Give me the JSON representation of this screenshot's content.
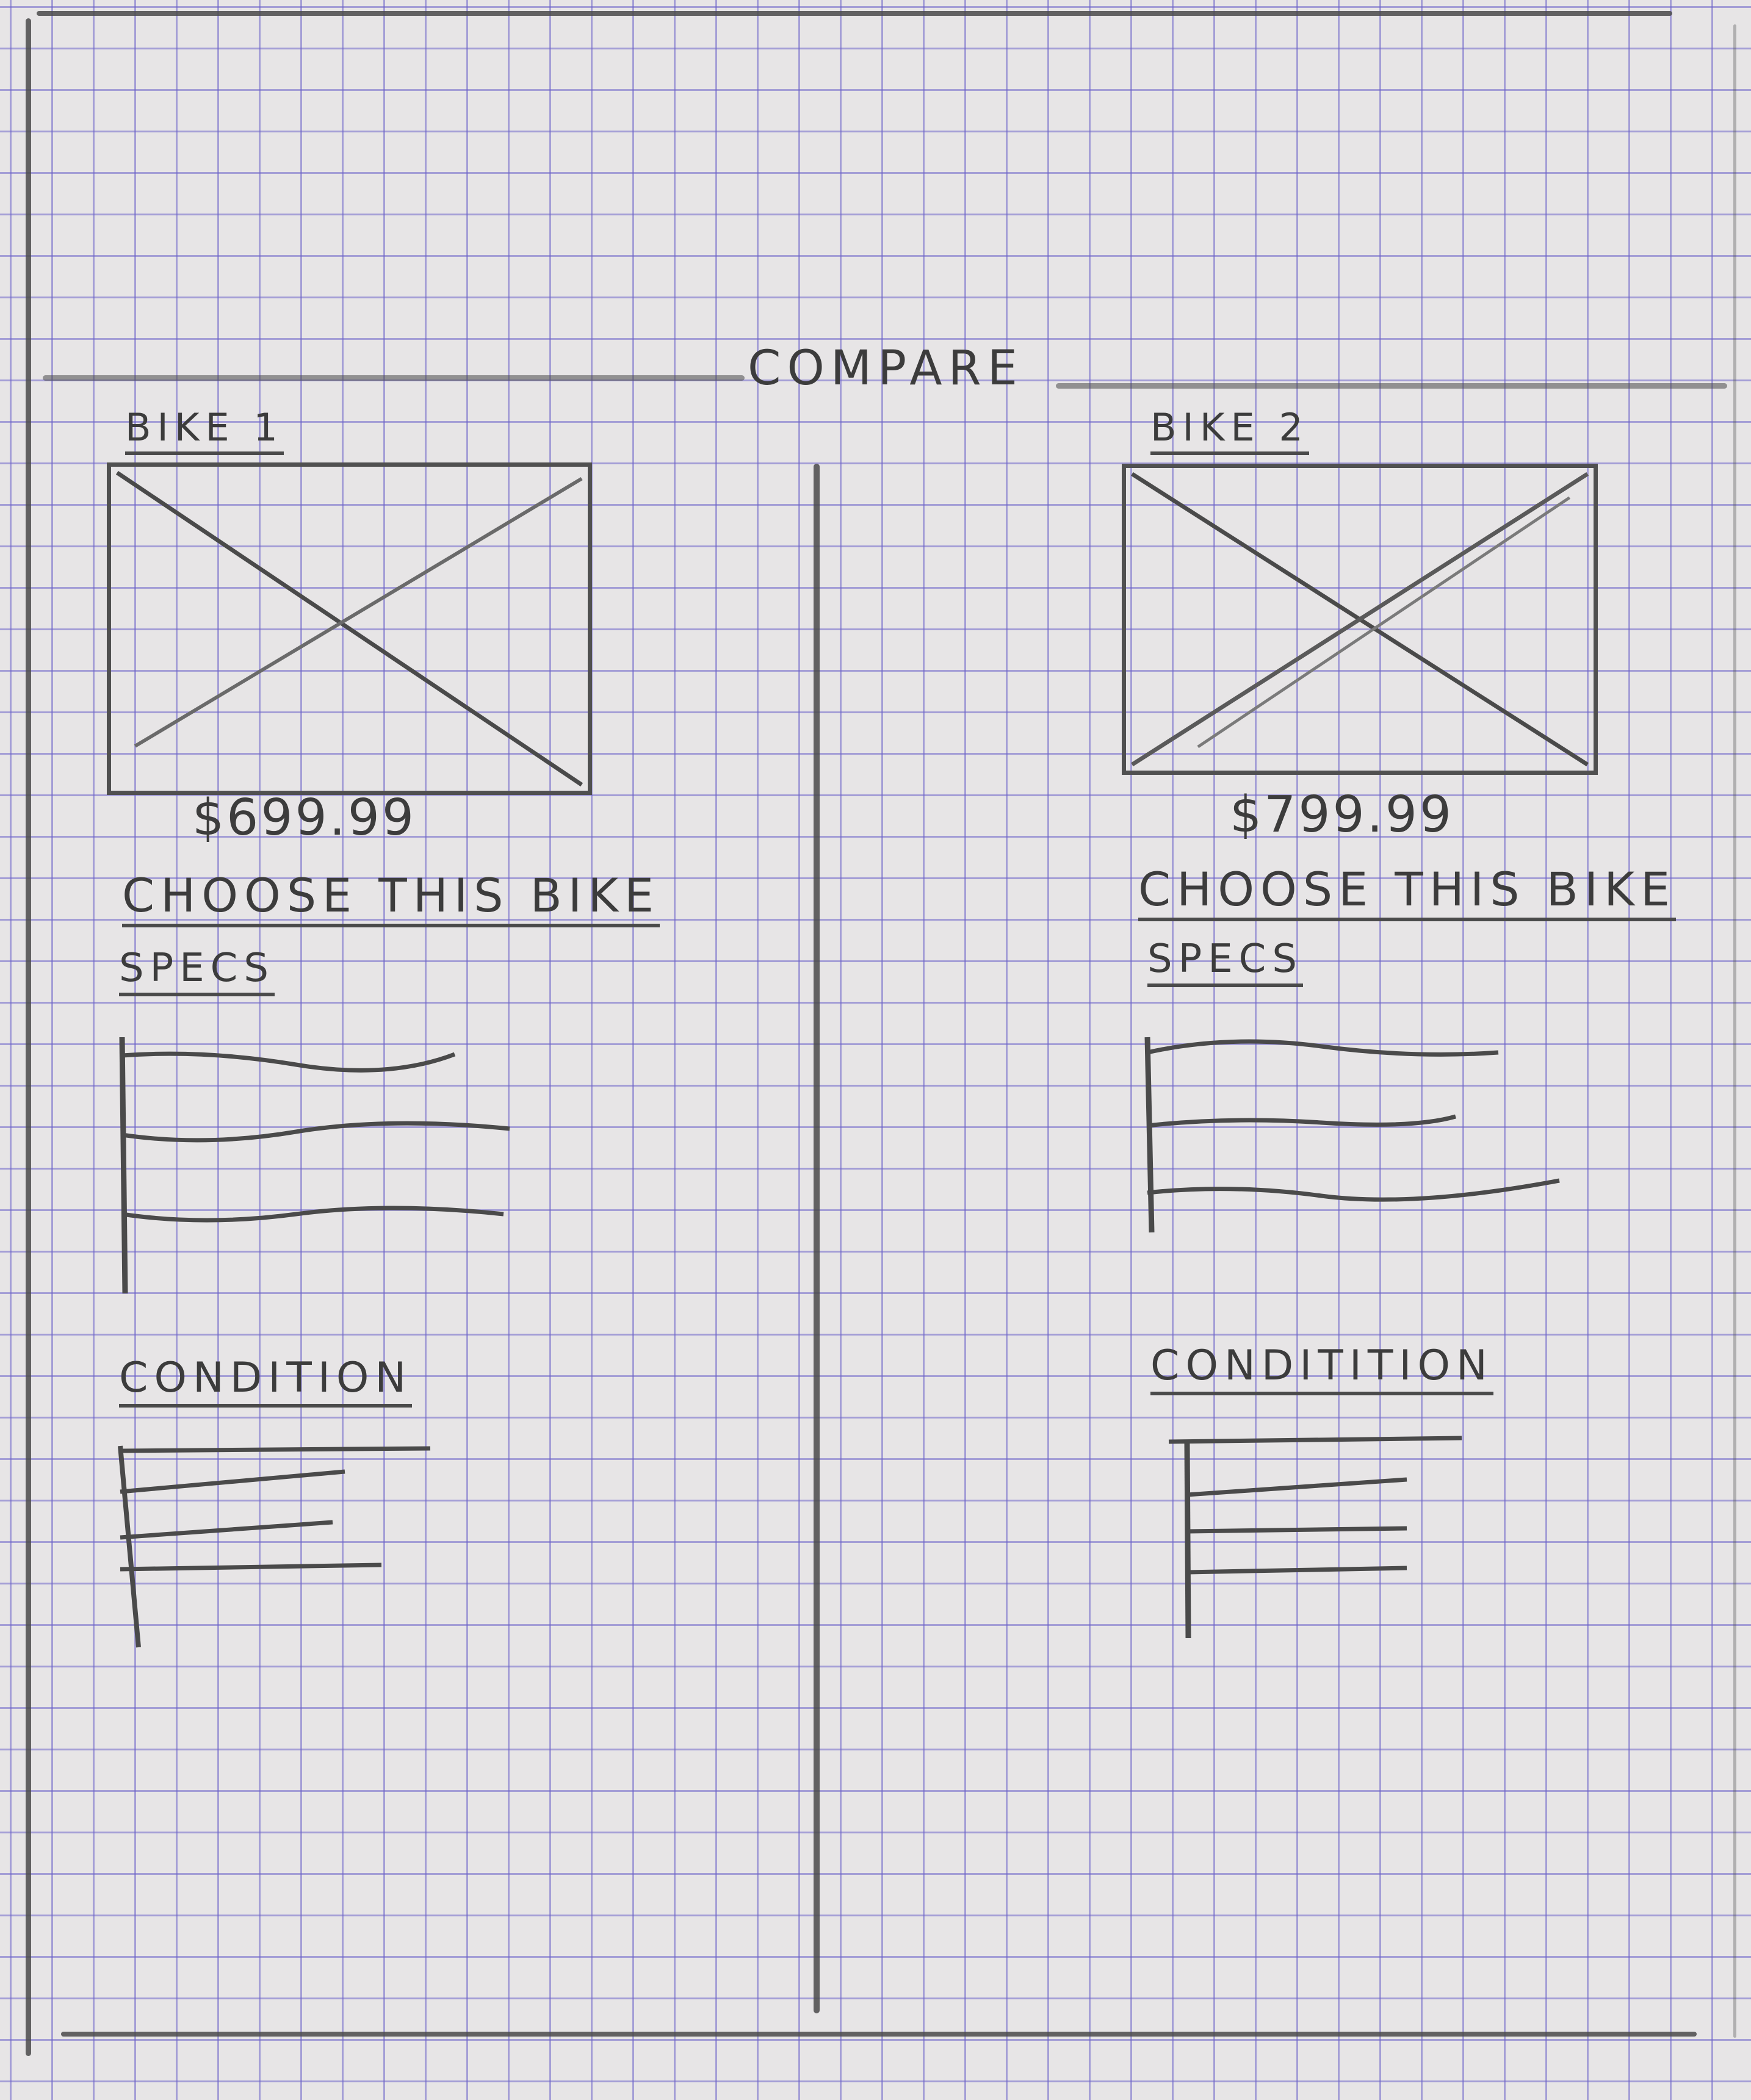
{
  "page": {
    "title": "COMPARE"
  },
  "bikes": [
    {
      "label": "BIKE 1",
      "price": "$699.99",
      "choose_label": "CHOOSE THIS BIKE",
      "specs_label": "SPECS",
      "condition_label": "CONDITION"
    },
    {
      "label": "BIKE 2",
      "price": "$799.99",
      "choose_label": "CHOOSE THIS BIKE",
      "specs_label": "SPECS",
      "condition_label": "CONDITITION"
    }
  ],
  "icons": {
    "image_placeholder": "image-placeholder-icon",
    "text_lines": "text-lines-icon"
  },
  "colors": {
    "paper": "#e7e5e6",
    "grid": "#6e64c8",
    "pencil": "#4a4a4a"
  }
}
